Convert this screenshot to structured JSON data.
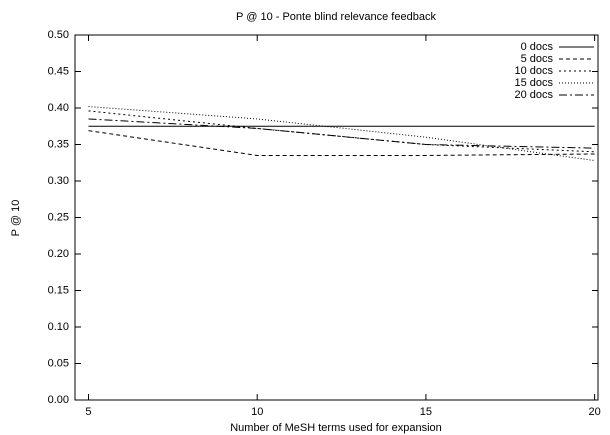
{
  "chart_data": {
    "type": "line",
    "title": "P @ 10 - Ponte blind relevance feedback",
    "xlabel": "Number of MeSH terms used for expansion",
    "ylabel": "P @ 10",
    "x": [
      5,
      10,
      15,
      20
    ],
    "series": [
      {
        "name": "0 docs",
        "color": "#000000",
        "values": [
          0.375,
          0.375,
          0.375,
          0.375
        ]
      },
      {
        "name": "5 docs",
        "color": "#000000",
        "values": [
          0.369,
          0.335,
          0.335,
          0.337
        ]
      },
      {
        "name": "10 docs",
        "color": "#000000",
        "values": [
          0.396,
          0.372,
          0.35,
          0.34
        ]
      },
      {
        "name": "15 docs",
        "color": "#000000",
        "values": [
          0.402,
          0.385,
          0.36,
          0.328
        ]
      },
      {
        "name": "20 docs",
        "color": "#000000",
        "values": [
          0.385,
          0.372,
          0.35,
          0.345
        ]
      }
    ],
    "xlim": [
      4.6,
      20.1
    ],
    "ylim": [
      0,
      0.5
    ],
    "xticks": [
      5,
      10,
      15,
      20
    ],
    "yticks": [
      {
        "value": 0,
        "label": "0.00"
      },
      {
        "value": 0.05,
        "label": "0.05"
      },
      {
        "value": 0.1,
        "label": "0.10"
      },
      {
        "value": 0.15,
        "label": "0.15"
      },
      {
        "value": 0.2,
        "label": "0.20"
      },
      {
        "value": 0.25,
        "label": "0.25"
      },
      {
        "value": 0.3,
        "label": "0.30"
      },
      {
        "value": 0.35,
        "label": "0.35"
      },
      {
        "value": 0.4,
        "label": "0.40"
      },
      {
        "value": 0.45,
        "label": "0.45"
      },
      {
        "value": 0.5,
        "label": "0.50"
      }
    ],
    "grid": false,
    "legend": "top-right"
  }
}
